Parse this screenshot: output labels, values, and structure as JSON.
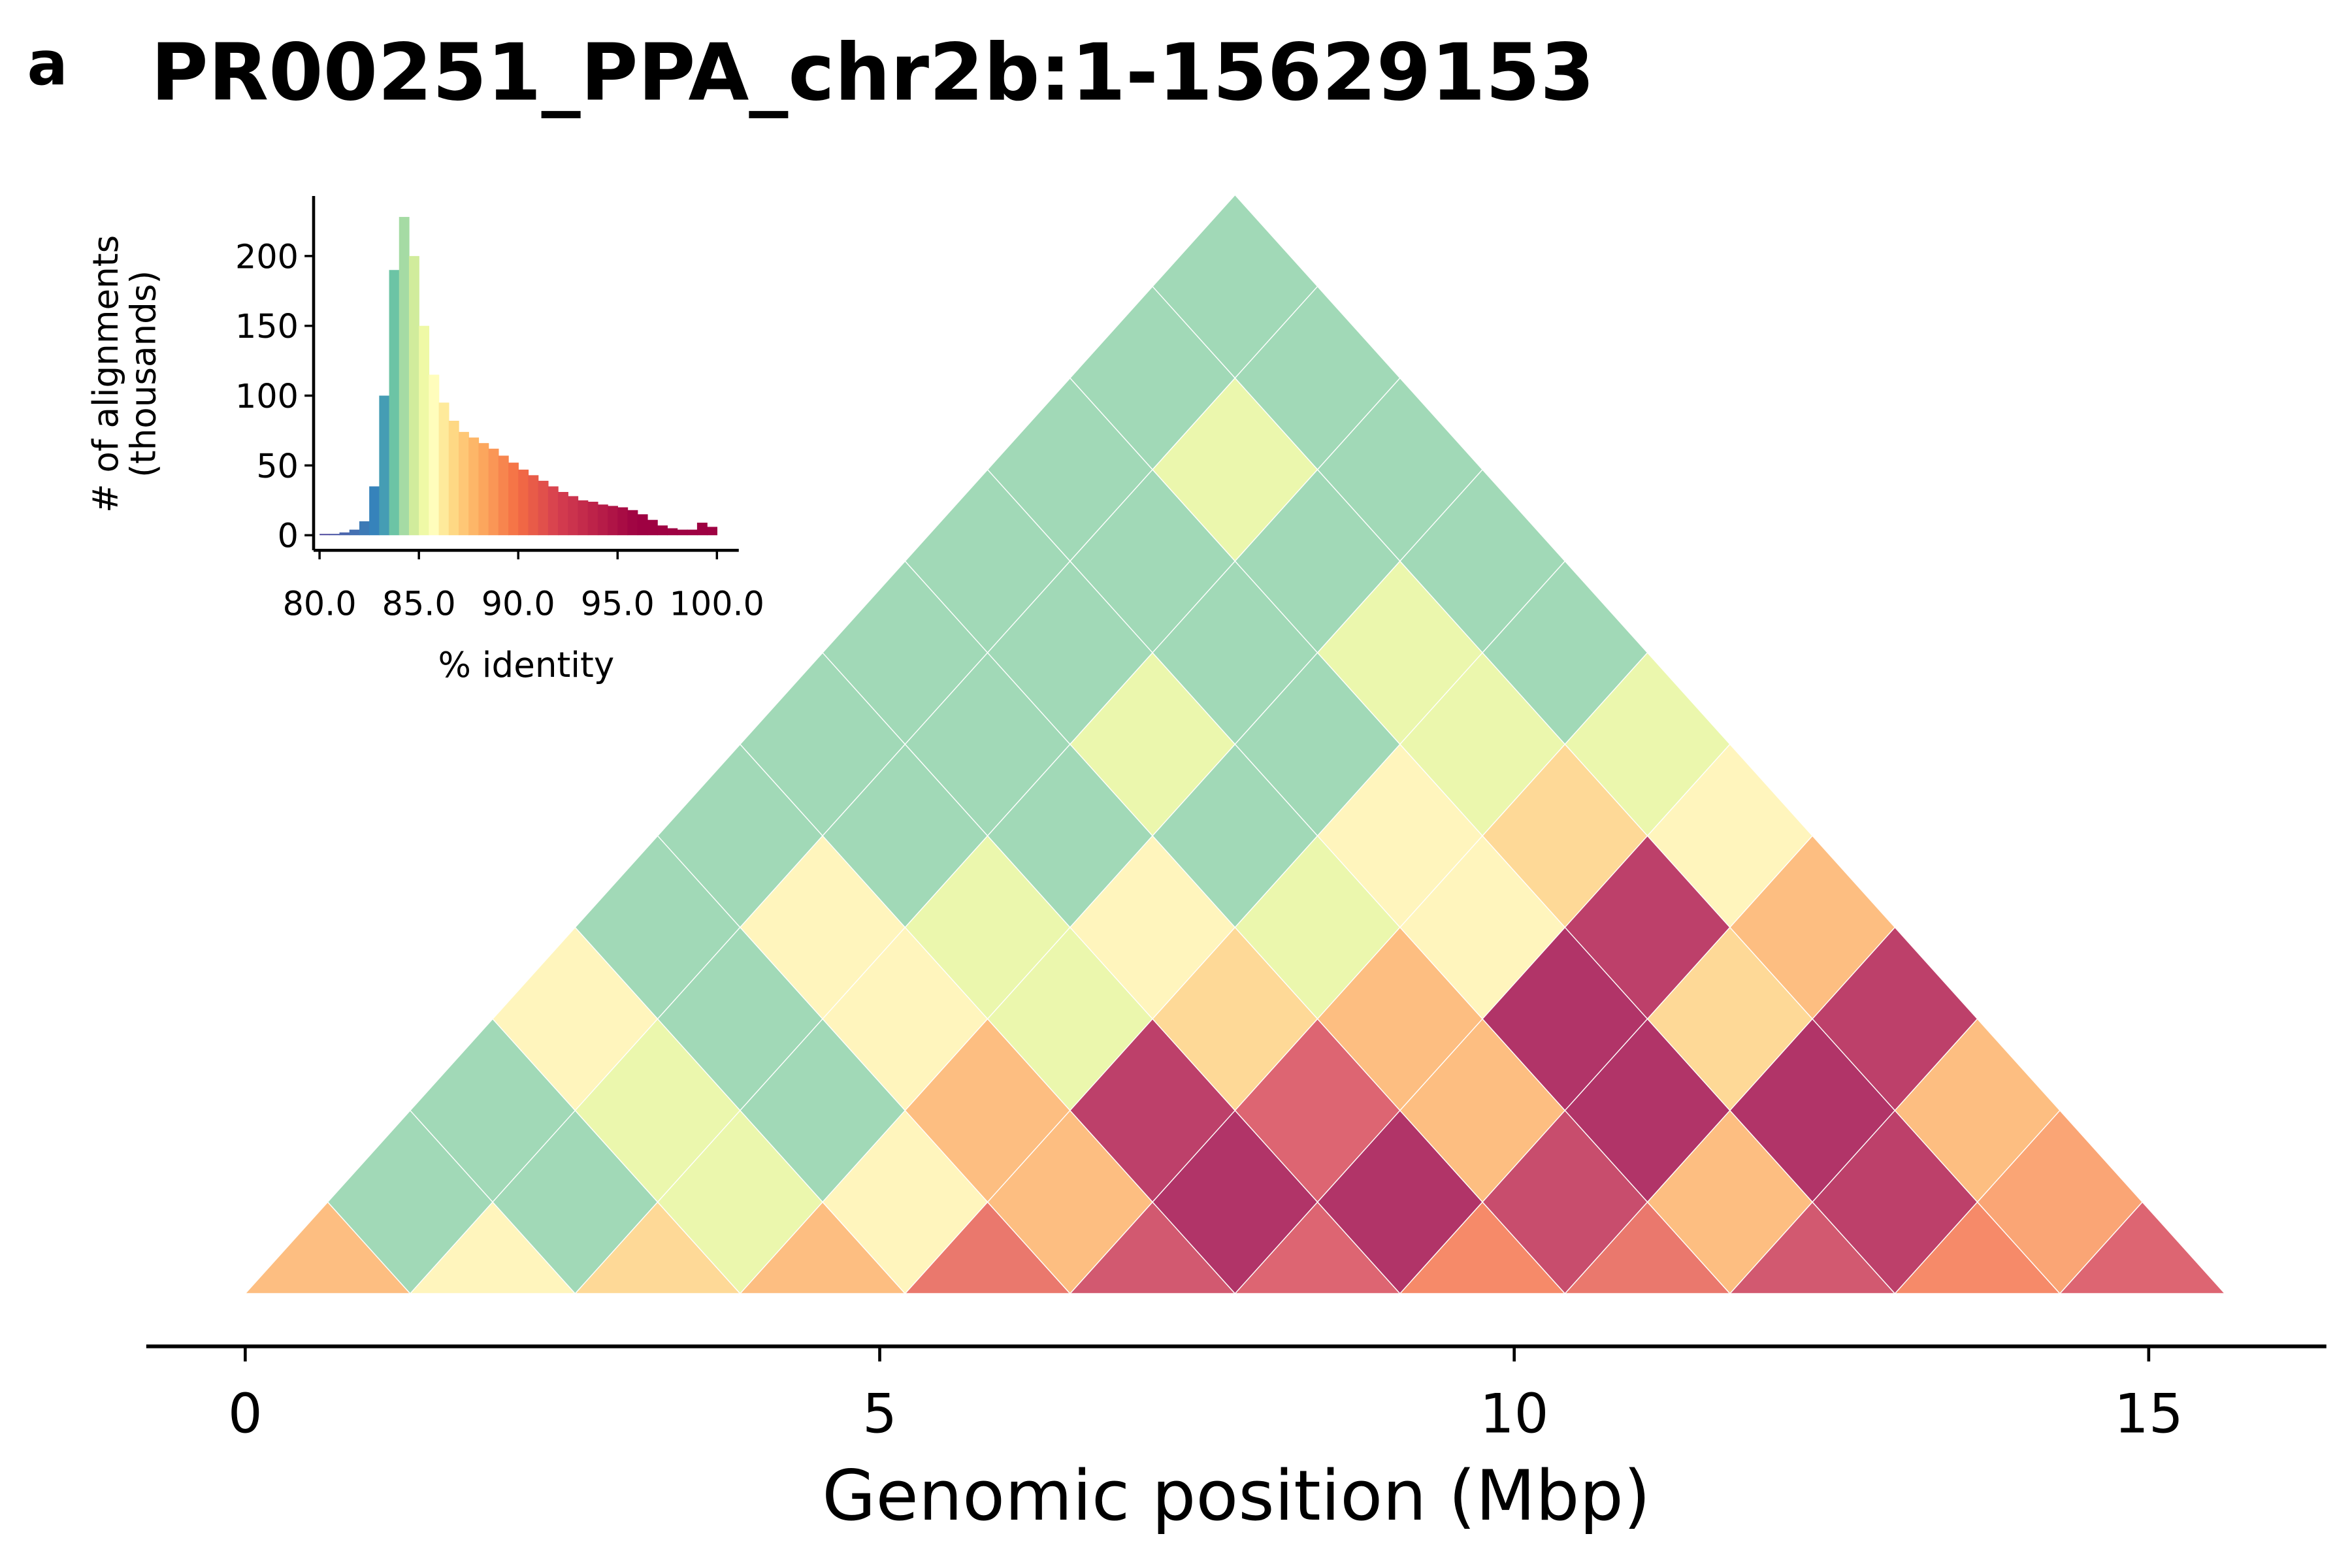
{
  "panel_label": "a",
  "colormap": {
    "values": [
      80,
      83,
      83.7,
      84.3,
      85,
      85.7,
      86.5,
      88,
      90,
      92,
      96
    ],
    "colors": [
      "#5e4fa2",
      "#3288bd",
      "#66c2a5",
      "#abdda4",
      "#e6f598",
      "#ffffbf",
      "#fee08b",
      "#fdae61",
      "#f46d43",
      "#d53e4f",
      "#9e0142"
    ]
  },
  "chart_data": [
    {
      "type": "triangle_heatmap",
      "title": "PR00251_PPA_chr2b:1-15629153",
      "xlabel": "Genomic position (Mbp)",
      "bins": [
        0,
        1.3,
        2.6,
        3.9,
        5.2,
        6.5,
        7.8,
        9.1,
        10.4,
        11.7,
        13.0,
        14.3,
        15.6
      ],
      "values": [
        [
          88,
          84,
          84,
          86,
          84,
          84,
          84,
          84,
          84,
          84,
          84,
          84
        ],
        [
          86,
          84,
          85,
          84,
          86,
          84,
          84,
          84,
          84,
          85,
          84
        ],
        [
          87,
          85,
          84,
          86,
          85,
          84,
          85,
          84,
          84,
          84
        ],
        [
          88,
          86,
          88,
          85,
          86,
          84,
          84,
          85,
          84
        ],
        [
          91,
          88,
          95,
          87,
          85,
          86,
          85,
          84
        ],
        [
          93,
          96,
          92,
          88,
          86,
          87,
          85
        ],
        [
          92,
          96,
          88,
          96,
          95,
          86
        ],
        [
          90,
          94,
          96,
          87,
          88
        ],
        [
          91,
          88,
          96,
          95
        ],
        [
          93,
          95,
          88
        ],
        [
          90,
          89
        ],
        [
          92
        ]
      ],
      "xlim": [
        -0.78,
        16.4
      ],
      "xticks": [
        0,
        5,
        10,
        15
      ]
    },
    {
      "type": "histogram",
      "xlabel": "% identity",
      "ylabel": [
        "# of alignments",
        "(thousands)"
      ],
      "bins": [
        80,
        80.5,
        81,
        81.5,
        82,
        82.5,
        83,
        83.5,
        84,
        84.5,
        85,
        85.5,
        86,
        86.5,
        87,
        87.5,
        88,
        88.5,
        89,
        89.5,
        90,
        90.5,
        91,
        91.5,
        92,
        92.5,
        93,
        93.5,
        94,
        94.5,
        95,
        95.5,
        96,
        96.5,
        97,
        97.5,
        98,
        98.5,
        99,
        99.5,
        100
      ],
      "values": [
        1,
        1,
        2,
        4,
        10,
        35,
        100,
        190,
        228,
        200,
        150,
        115,
        95,
        82,
        74,
        70,
        66,
        62,
        57,
        52,
        47,
        43,
        39,
        35,
        31,
        28,
        25,
        24,
        22,
        21,
        20,
        18,
        15,
        11,
        7,
        5,
        4,
        4,
        9,
        6
      ],
      "xlim": [
        79.7,
        101.1
      ],
      "ylim": [
        -10.8,
        243
      ],
      "xticks": [
        {
          "value": 80,
          "label": "80.0"
        },
        {
          "value": 85,
          "label": "85.0"
        },
        {
          "value": 90,
          "label": "90.0"
        },
        {
          "value": 95,
          "label": "95.0"
        },
        {
          "value": 100,
          "label": "100.0"
        }
      ],
      "yticks": [
        0,
        50,
        100,
        150,
        200
      ]
    }
  ]
}
